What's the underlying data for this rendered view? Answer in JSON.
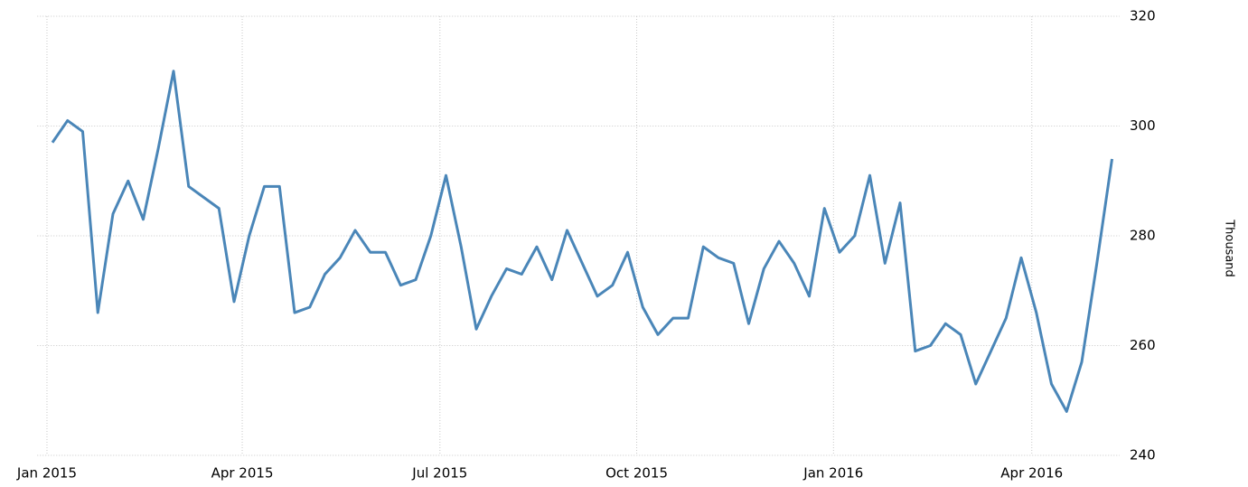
{
  "chart_data": {
    "type": "line",
    "x": [
      0,
      1,
      2,
      3,
      4,
      5,
      6,
      7,
      8,
      9,
      10,
      11,
      12,
      13,
      14,
      15,
      16,
      17,
      18,
      19,
      20,
      21,
      22,
      23,
      24,
      25,
      26,
      27,
      28,
      29,
      30,
      31,
      32,
      33,
      34,
      35,
      36,
      37,
      38,
      39,
      40,
      41,
      42,
      43,
      44,
      45,
      46,
      47,
      48,
      49,
      50,
      51,
      52,
      53,
      54,
      55,
      56,
      57,
      58,
      59,
      60,
      61,
      62,
      63,
      64,
      65,
      66,
      67,
      68,
      69,
      70
    ],
    "series": [
      {
        "name": "Thousand",
        "color": "#4a86b8",
        "values": [
          297,
          301,
          299,
          266,
          284,
          290,
          283,
          296,
          310,
          289,
          287,
          285,
          268,
          280,
          289,
          289,
          266,
          267,
          273,
          276,
          281,
          277,
          277,
          271,
          272,
          280,
          291,
          278,
          263,
          269,
          274,
          273,
          278,
          272,
          281,
          275,
          269,
          271,
          277,
          267,
          262,
          265,
          265,
          278,
          276,
          275,
          264,
          274,
          279,
          275,
          269,
          285,
          277,
          280,
          291,
          275,
          286,
          259,
          260,
          264,
          262,
          253,
          259,
          265,
          276,
          266,
          253,
          248,
          257,
          275,
          294
        ]
      }
    ],
    "y_label": "Thousand",
    "xlim": [
      -1,
      70.5
    ],
    "xticks": [
      {
        "value": -0.36,
        "label": "Jan 2015"
      },
      {
        "value": 12.54,
        "label": "Apr 2015"
      },
      {
        "value": 25.6,
        "label": "Jul 2015"
      },
      {
        "value": 38.6,
        "label": "Oct 2015"
      },
      {
        "value": 51.6,
        "label": "Jan 2016"
      },
      {
        "value": 64.7,
        "label": "Apr 2016"
      }
    ],
    "ylim": [
      240,
      320
    ],
    "yticks": [
      240,
      260,
      280,
      300,
      320
    ],
    "grid": true
  }
}
